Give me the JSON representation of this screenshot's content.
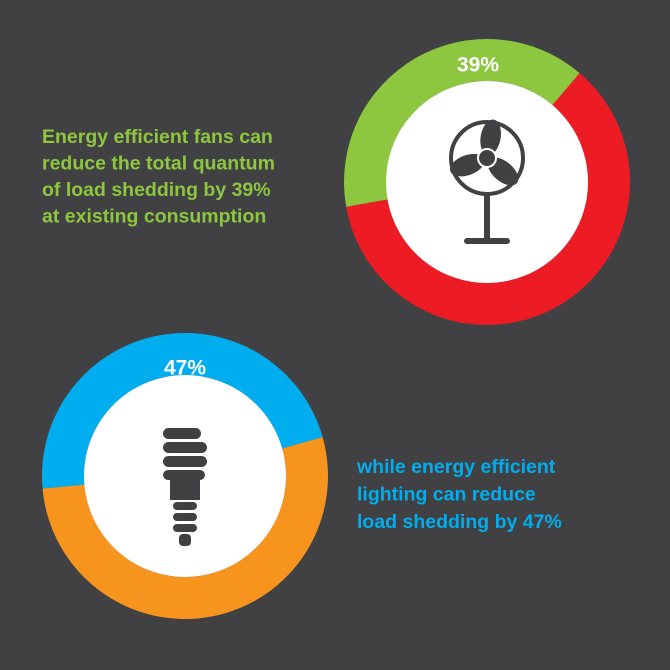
{
  "chart_data": [
    {
      "type": "donut",
      "values": [
        39,
        61
      ],
      "value_labels": [
        "39%",
        null
      ],
      "colors": [
        "#8dc63f",
        "#ed1c24"
      ],
      "text": [
        "Energy efficient fans can",
        "reduce the total quantum",
        "of load shedding by 39%",
        "at existing consumption"
      ],
      "text_color": "#8dc63f"
    },
    {
      "type": "donut",
      "values": [
        47,
        53
      ],
      "value_labels": [
        "47%",
        null
      ],
      "colors": [
        "#00aeef",
        "#f7941d"
      ],
      "text": [
        "while energy efficient",
        "lighting can reduce",
        "load shedding by 47%"
      ],
      "text_color": "#00aeef"
    }
  ]
}
